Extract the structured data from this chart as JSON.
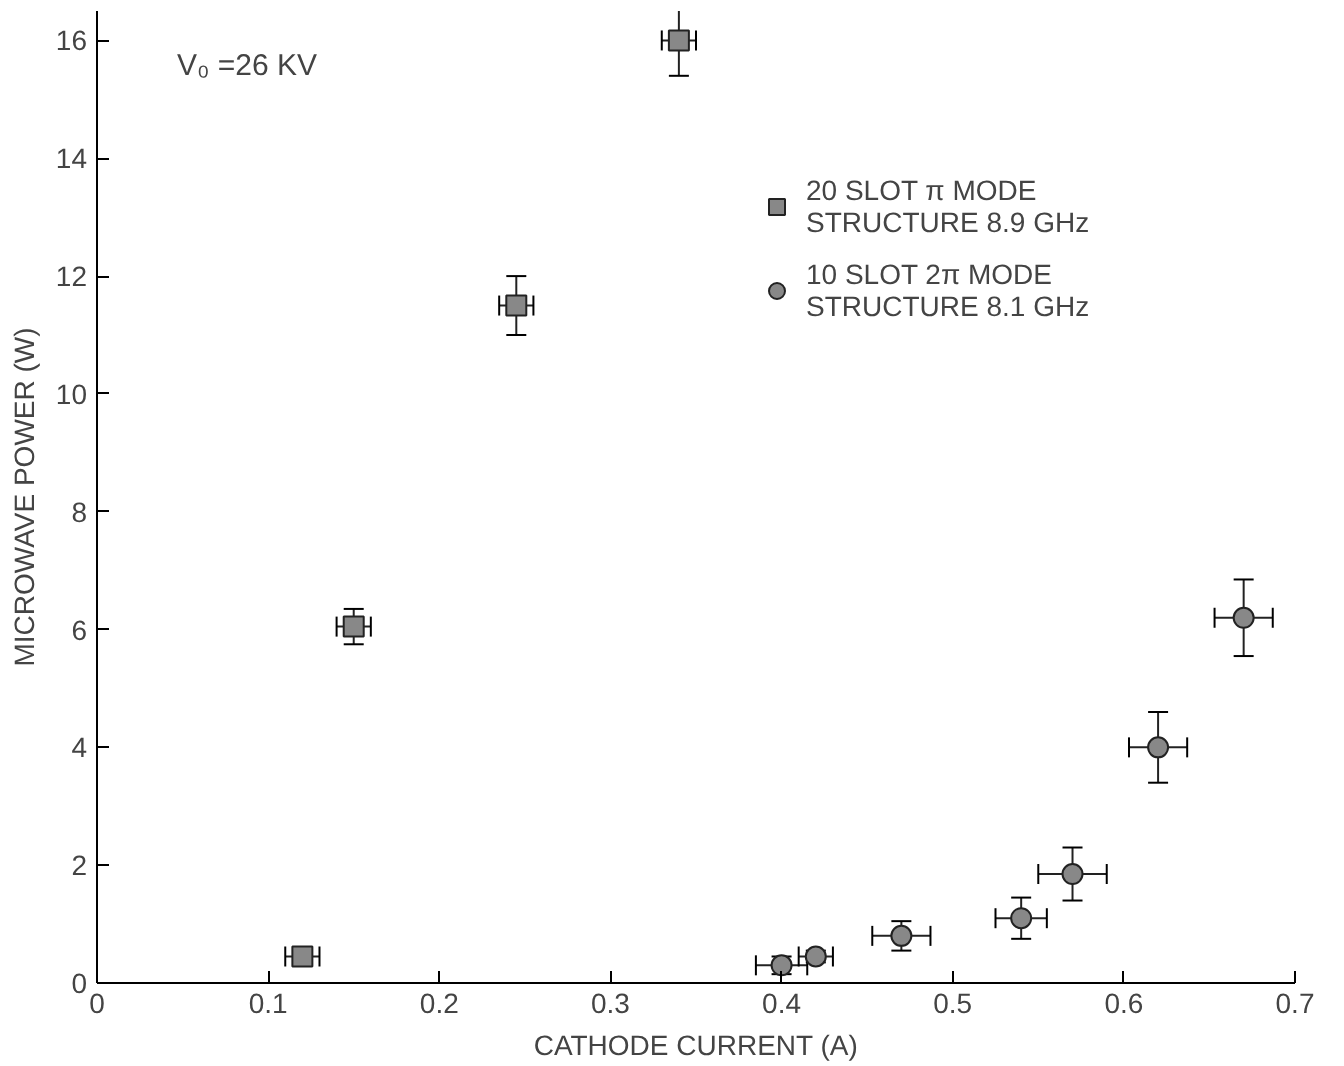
{
  "chart_data": {
    "type": "scatter",
    "xlabel": "CATHODE CURRENT (A)",
    "ylabel": "MICROWAVE POWER (W)",
    "annotations": [
      "V₀ =26 KV"
    ],
    "xlim": [
      0,
      0.7
    ],
    "ylim": [
      0,
      16.5
    ],
    "xticks": [
      0,
      0.1,
      0.2,
      0.3,
      0.4,
      0.5,
      0.6,
      0.7
    ],
    "yticks": [
      0,
      2,
      4,
      6,
      8,
      10,
      12,
      14,
      16
    ],
    "grid": false,
    "legend": "top right",
    "series": [
      {
        "name": "20 SLOT π MODE\nSTRUCTURE 8.9 GHz",
        "color": "#222222",
        "marker": "square",
        "x": [
          0.12,
          0.15,
          0.245,
          0.34
        ],
        "values": [
          0.45,
          6.05,
          11.5,
          16.0
        ],
        "errors": [
          0.1,
          0.3,
          0.5,
          0.6
        ],
        "xerrors": [
          0.01,
          0.01,
          0.01,
          0.01
        ]
      },
      {
        "name": "10 SLOT 2π MODE\nSTRUCTURE 8.1 GHz",
        "color": "#222222",
        "marker": "circle",
        "x": [
          0.4,
          0.42,
          0.47,
          0.54,
          0.57,
          0.62,
          0.67
        ],
        "values": [
          0.3,
          0.45,
          0.8,
          1.1,
          1.85,
          4.0,
          6.2
        ],
        "errors": [
          0.15,
          0.1,
          0.25,
          0.35,
          0.45,
          0.6,
          0.65
        ],
        "xerrors": [
          0.015,
          0.01,
          0.017,
          0.015,
          0.02,
          0.017,
          0.017
        ]
      }
    ]
  }
}
